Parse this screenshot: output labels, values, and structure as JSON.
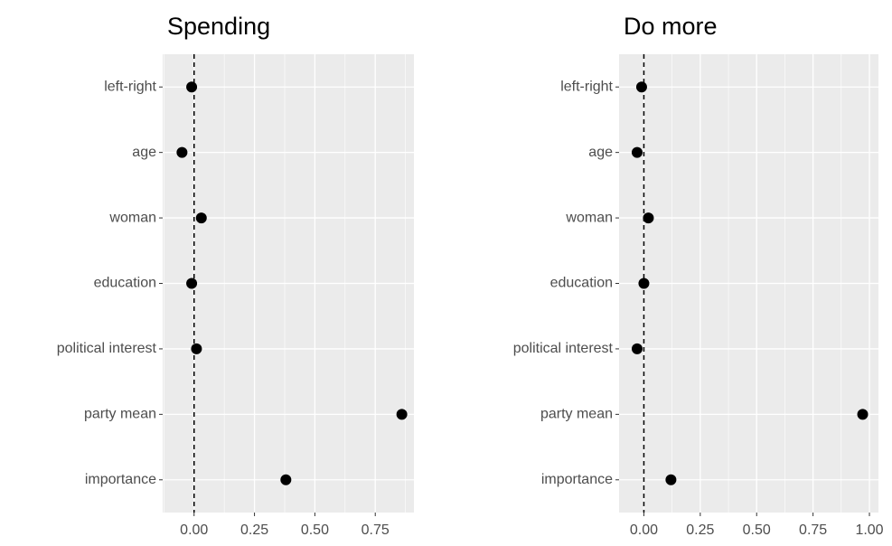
{
  "chart_data": [
    {
      "type": "dot",
      "title": "Spending",
      "categories": [
        "left-right",
        "age",
        "woman",
        "education",
        "political interest",
        "party mean",
        "importance"
      ],
      "values": [
        -0.01,
        -0.05,
        0.03,
        -0.01,
        0.01,
        0.86,
        0.38
      ],
      "color": "#000000",
      "vline": 0,
      "xlim": [
        -0.13,
        0.91
      ],
      "xticks": [
        {
          "value": 0,
          "label": "0.00"
        },
        {
          "value": 0.25,
          "label": "0.25"
        },
        {
          "value": 0.5,
          "label": "0.50"
        },
        {
          "value": 0.75,
          "label": "0.75"
        }
      ],
      "grid": true
    },
    {
      "type": "dot",
      "title": "Do more",
      "categories": [
        "left-right",
        "age",
        "woman",
        "education",
        "political interest",
        "party mean",
        "importance"
      ],
      "values": [
        -0.01,
        -0.03,
        0.02,
        0.0,
        -0.03,
        0.97,
        0.12
      ],
      "color": "#000000",
      "vline": 0,
      "xlim": [
        -0.11,
        1.04
      ],
      "xticks": [
        {
          "value": 0,
          "label": "0.00"
        },
        {
          "value": 0.25,
          "label": "0.25"
        },
        {
          "value": 0.5,
          "label": "0.50"
        },
        {
          "value": 0.75,
          "label": "0.75"
        },
        {
          "value": 1,
          "label": "1.00"
        }
      ],
      "grid": true
    }
  ]
}
